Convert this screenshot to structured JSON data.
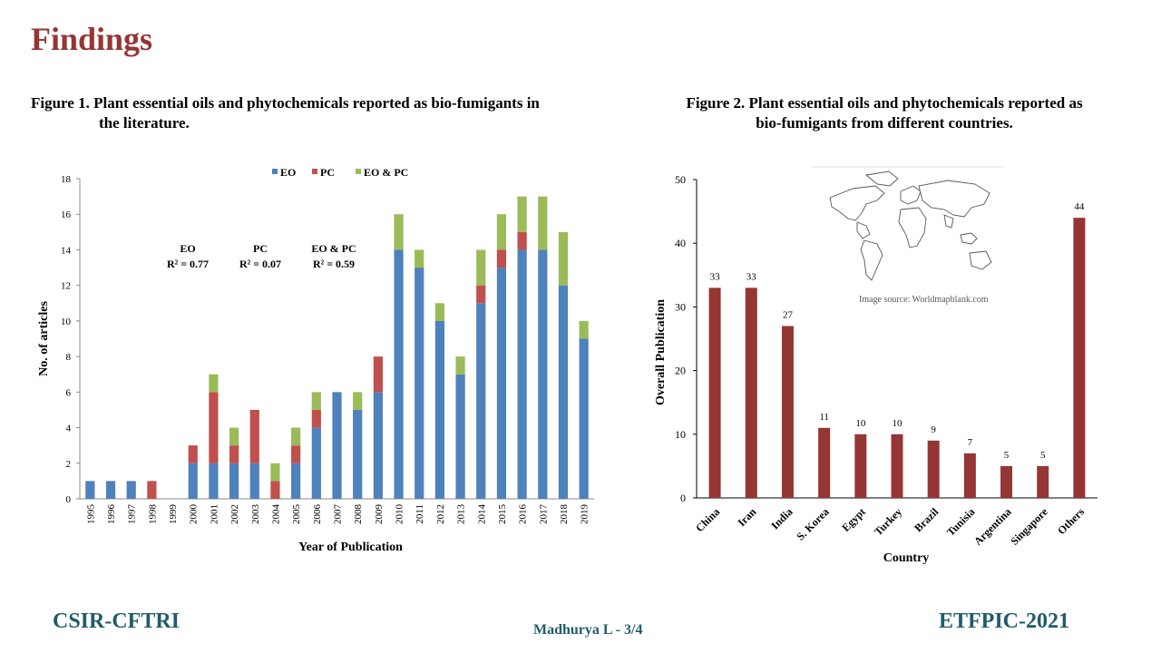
{
  "slide": {
    "title": "Findings",
    "footer_left": "CSIR-CFTRI",
    "footer_center": "Madhurya L - 3/4",
    "footer_right": "ETFPIC-2021"
  },
  "figure1": {
    "caption_line1": "Figure 1. Plant essential oils and phytochemicals reported as bio-fumigants in",
    "caption_line2": "the literature."
  },
  "figure2": {
    "caption_line1": "Figure 2. Plant essential oils and phytochemicals reported as",
    "caption_line2": "bio-fumigants from different countries.",
    "map_caption": "Image source: Worldmapblank.com"
  },
  "colors": {
    "eo": "#4f81bd",
    "pc": "#c0504d",
    "eo_pc": "#9bbb59",
    "country_bar": "#943634",
    "title": "#943634",
    "footer": "#1f5c6b"
  },
  "chart_data": [
    {
      "type": "bar",
      "stacked": true,
      "categories": [
        "1995",
        "1996",
        "1997",
        "1998",
        "1999",
        "2000",
        "2001",
        "2002",
        "2003",
        "2004",
        "2005",
        "2006",
        "2007",
        "2008",
        "2009",
        "2010",
        "2011",
        "2012",
        "2013",
        "2014",
        "2015",
        "2016",
        "2017",
        "2018",
        "2019"
      ],
      "series": [
        {
          "name": "EO",
          "values": [
            1,
            1,
            1,
            0,
            0,
            2,
            2,
            2,
            2,
            0,
            2,
            4,
            6,
            5,
            6,
            14,
            13,
            10,
            7,
            11,
            13,
            14,
            14,
            12,
            9
          ]
        },
        {
          "name": "PC",
          "values": [
            0,
            0,
            0,
            1,
            0,
            1,
            4,
            1,
            3,
            1,
            1,
            1,
            0,
            0,
            2,
            0,
            0,
            0,
            0,
            1,
            1,
            1,
            0,
            0,
            0
          ]
        },
        {
          "name": "EO & PC",
          "values": [
            0,
            0,
            0,
            0,
            0,
            0,
            1,
            1,
            0,
            1,
            1,
            1,
            0,
            1,
            0,
            2,
            1,
            1,
            1,
            2,
            2,
            2,
            3,
            3,
            1
          ]
        }
      ],
      "xlabel": "Year of Publication",
      "ylabel": "No. of articles",
      "ylim": [
        0,
        18
      ],
      "yticks": [
        0,
        2,
        4,
        6,
        8,
        10,
        12,
        14,
        16,
        18
      ],
      "legend": "top",
      "annotations": [
        {
          "label": "EO",
          "r2": "R² = 0.77"
        },
        {
          "label": "PC",
          "r2": "R² = 0.07"
        },
        {
          "label": "EO & PC",
          "r2": "R² = 0.59"
        }
      ]
    },
    {
      "type": "bar",
      "categories": [
        "China",
        "Iran",
        "India",
        "S. Korea",
        "Egypt",
        "Turkey",
        "Brazil",
        "Tunisia",
        "Argentina",
        "Singapore",
        "Others"
      ],
      "values": [
        33,
        33,
        27,
        11,
        10,
        10,
        9,
        7,
        5,
        5,
        44
      ],
      "xlabel": "Country",
      "ylabel": "Overall Publication",
      "ylim": [
        0,
        50
      ],
      "yticks": [
        0,
        10,
        20,
        30,
        40,
        50
      ]
    }
  ]
}
